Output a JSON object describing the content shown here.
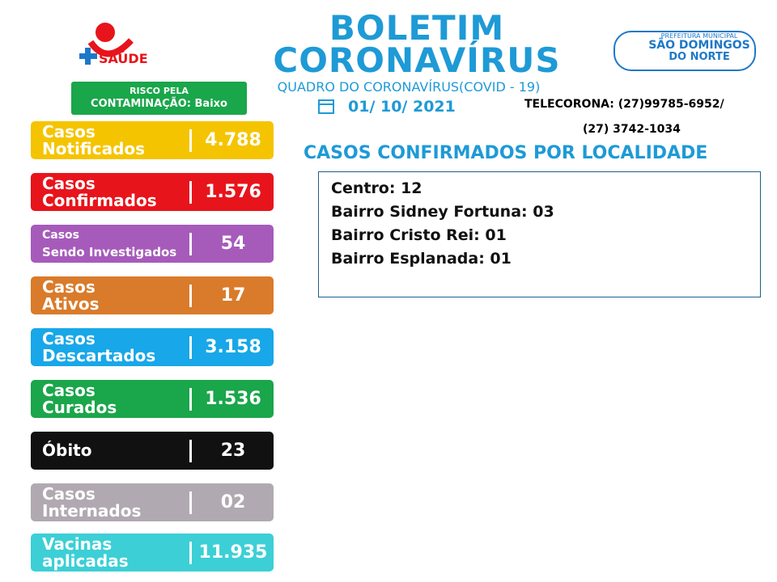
{
  "header": {
    "title_line1": "BOLETIM",
    "title_line2": "CORONAVÍRUS",
    "subtitle": "QUADRO DO CORONAVÍRUS(COVID - 19)",
    "date": "01/ 10/ 2021"
  },
  "logo_left": {
    "text": "SAÚDE"
  },
  "logo_right": {
    "line1": "PREFEITURA MUNICIPAL",
    "line2": "SÃO DOMINGOS",
    "line3": "DO NORTE"
  },
  "risk": {
    "line1": "RISCO PELA",
    "line2": "CONTAMINAÇÃO: Baixo"
  },
  "telecorona": {
    "line1": "TELECORONA: (27)99785-6952/",
    "line2": "(27) 3742-1034"
  },
  "stats": [
    {
      "label": [
        "Casos",
        "Notificados"
      ],
      "value": "4.788",
      "color": "#f5c400"
    },
    {
      "label": [
        "Casos",
        "Confirmados"
      ],
      "value": "1.576",
      "color": "#e8141b"
    },
    {
      "label": [
        "Casos",
        "Sendo Investigados"
      ],
      "value": "54",
      "color": "#a65bbb"
    },
    {
      "label": [
        "Casos",
        "Ativos"
      ],
      "value": "17",
      "color": "#d97b2a"
    },
    {
      "label": [
        "Casos",
        "Descartados"
      ],
      "value": "3.158",
      "color": "#18a7e8"
    },
    {
      "label": [
        "Casos",
        "Curados"
      ],
      "value": "1.536",
      "color": "#1aa64a"
    },
    {
      "label": [
        "Óbito"
      ],
      "value": "23",
      "color": "#111111"
    },
    {
      "label": [
        "Casos",
        "Internados"
      ],
      "value": "02",
      "color": "#b1a9b1"
    },
    {
      "label": [
        "Vacinas",
        "aplicadas"
      ],
      "value": "11.935",
      "color": "#3ccfd6"
    }
  ],
  "locality": {
    "title": "CASOS CONFIRMADOS POR LOCALIDADE",
    "items": [
      "Centro: 12",
      "Bairro Sidney Fortuna: 03",
      "Bairro Cristo Rei: 01",
      "Bairro Esplanada: 01"
    ]
  }
}
